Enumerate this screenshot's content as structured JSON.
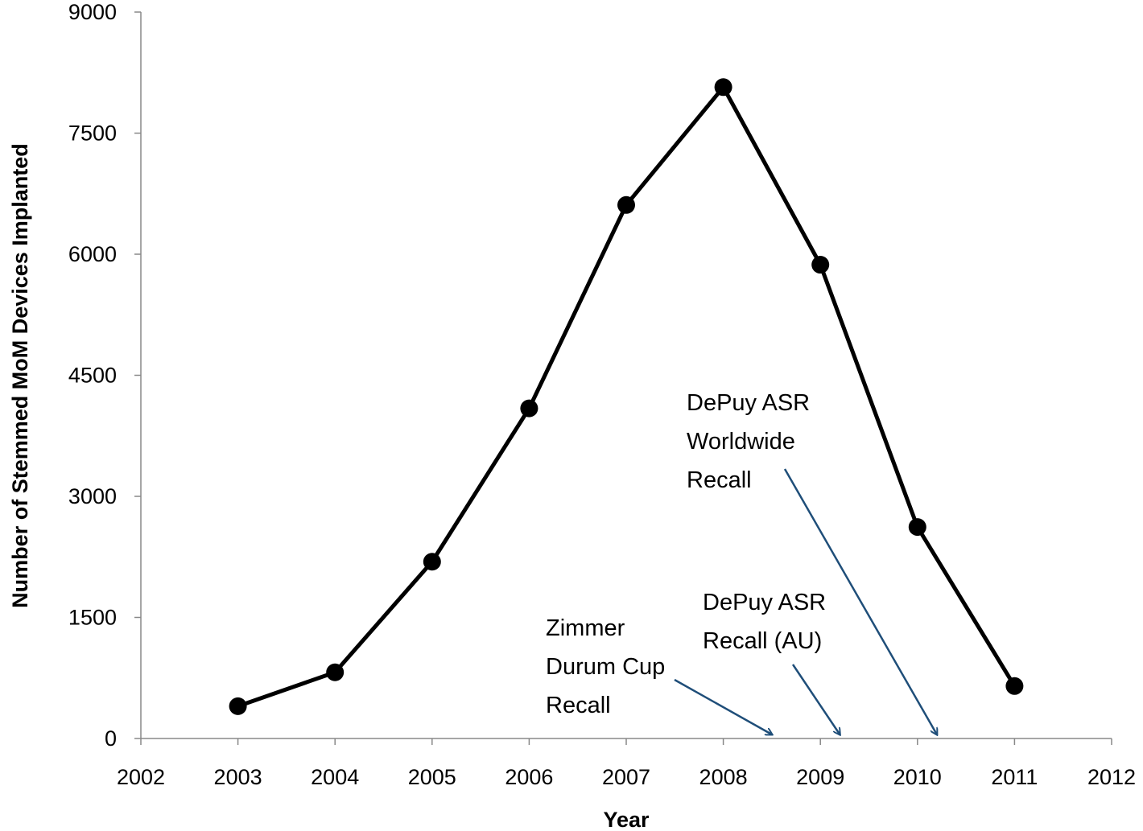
{
  "chart_data": {
    "type": "line",
    "title": "",
    "xlabel": "Year",
    "ylabel": "Number of Stemmed MoM Devices Implanted",
    "xlim": [
      2002,
      2012
    ],
    "ylim": [
      0,
      9000
    ],
    "xticks": [
      2002,
      2003,
      2004,
      2005,
      2006,
      2007,
      2008,
      2009,
      2010,
      2011,
      2012
    ],
    "yticks": [
      0,
      1500,
      3000,
      4500,
      6000,
      7500,
      9000
    ],
    "grid": false,
    "series": [
      {
        "name": "Stemmed MoM Devices Implanted",
        "color": "#000000",
        "x": [
          2003,
          2004,
          2005,
          2006,
          2007,
          2008,
          2009,
          2010,
          2011
        ],
        "y": [
          400,
          820,
          2190,
          4090,
          6610,
          8070,
          5870,
          2620,
          650
        ]
      }
    ],
    "annotations": [
      {
        "lines": [
          "Zimmer",
          "Durum Cup",
          "Recall"
        ],
        "arrow_target_x": 2008.5,
        "color": "#1f4e79"
      },
      {
        "lines": [
          "DePuy ASR",
          "Recall (AU)"
        ],
        "arrow_target_x": 2009.2,
        "color": "#1f4e79"
      },
      {
        "lines": [
          "DePuy ASR",
          "Worldwide",
          "Recall"
        ],
        "arrow_target_x": 2010.2,
        "color": "#1f4e79"
      }
    ]
  }
}
